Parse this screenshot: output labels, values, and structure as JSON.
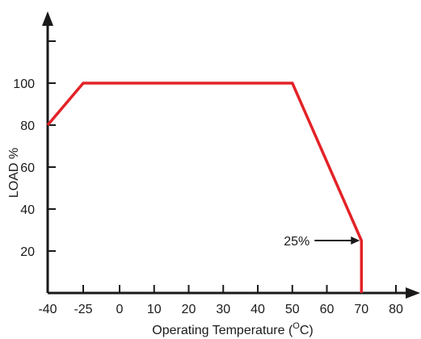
{
  "chart_data": {
    "type": "line",
    "xlabel": "Operating Temperature (",
    "xlabel_unit_sup": "O",
    "xlabel_unit_tail": "C)",
    "ylabel": "LOAD %",
    "x_ticks": [
      -40,
      -25,
      0,
      10,
      20,
      30,
      40,
      50,
      60,
      70,
      80
    ],
    "x_tick_labels": [
      "-40",
      "-25",
      "0",
      "10",
      "20",
      "30",
      "40",
      "50",
      "60",
      "70",
      "80"
    ],
    "y_ticks": [
      20,
      40,
      60,
      80,
      100
    ],
    "y_tick_labels": [
      "20",
      "40",
      "60",
      "80",
      "100"
    ],
    "series": [
      {
        "points": [
          {
            "x": -40,
            "y": 80
          },
          {
            "x": -25,
            "y": 100
          },
          {
            "x": 50,
            "y": 100
          },
          {
            "x": 70,
            "y": 25
          },
          {
            "x": 70,
            "y": 0
          }
        ]
      }
    ],
    "annotations": [
      {
        "text": "25%",
        "x": 70,
        "y": 25
      }
    ],
    "grid": false
  },
  "colors": {
    "line": "#e32227",
    "axis": "#1a1a1a"
  }
}
